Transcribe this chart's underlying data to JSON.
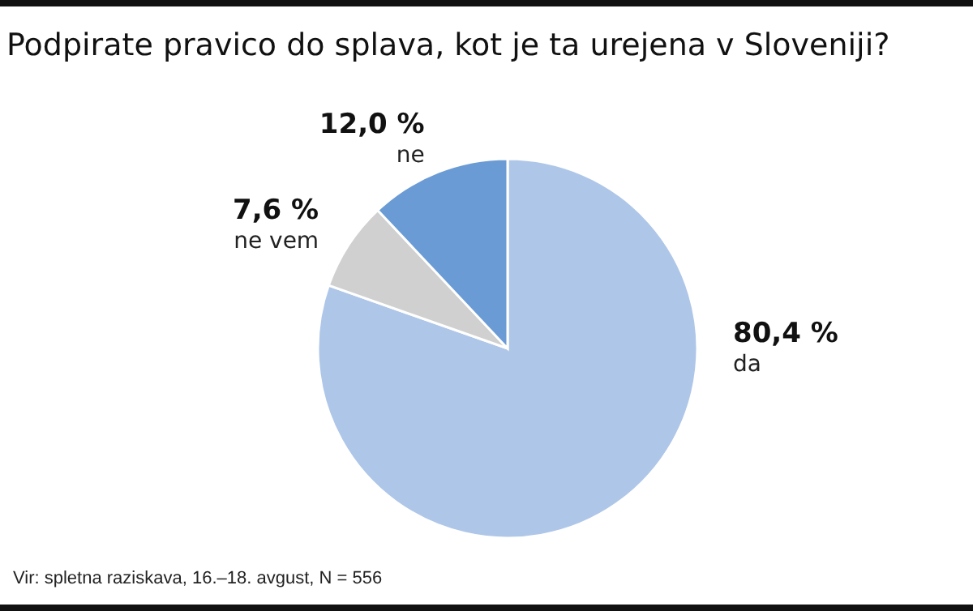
{
  "chart_data": {
    "type": "pie",
    "title": "Podpirate pravico do splava, kot je ta urejena v Sloveniji?",
    "categories": [
      "da",
      "ne vem",
      "ne"
    ],
    "values": [
      80.4,
      7.6,
      12.0
    ],
    "colors": [
      "#aec6e8",
      "#d0d0d0",
      "#6a9bd4"
    ],
    "value_labels": [
      "80,4 %",
      "7,6 %",
      "12,0 %"
    ],
    "annotations": [
      "Vir: spletna raziskava, 16.–18. avgust, N = 556"
    ]
  }
}
